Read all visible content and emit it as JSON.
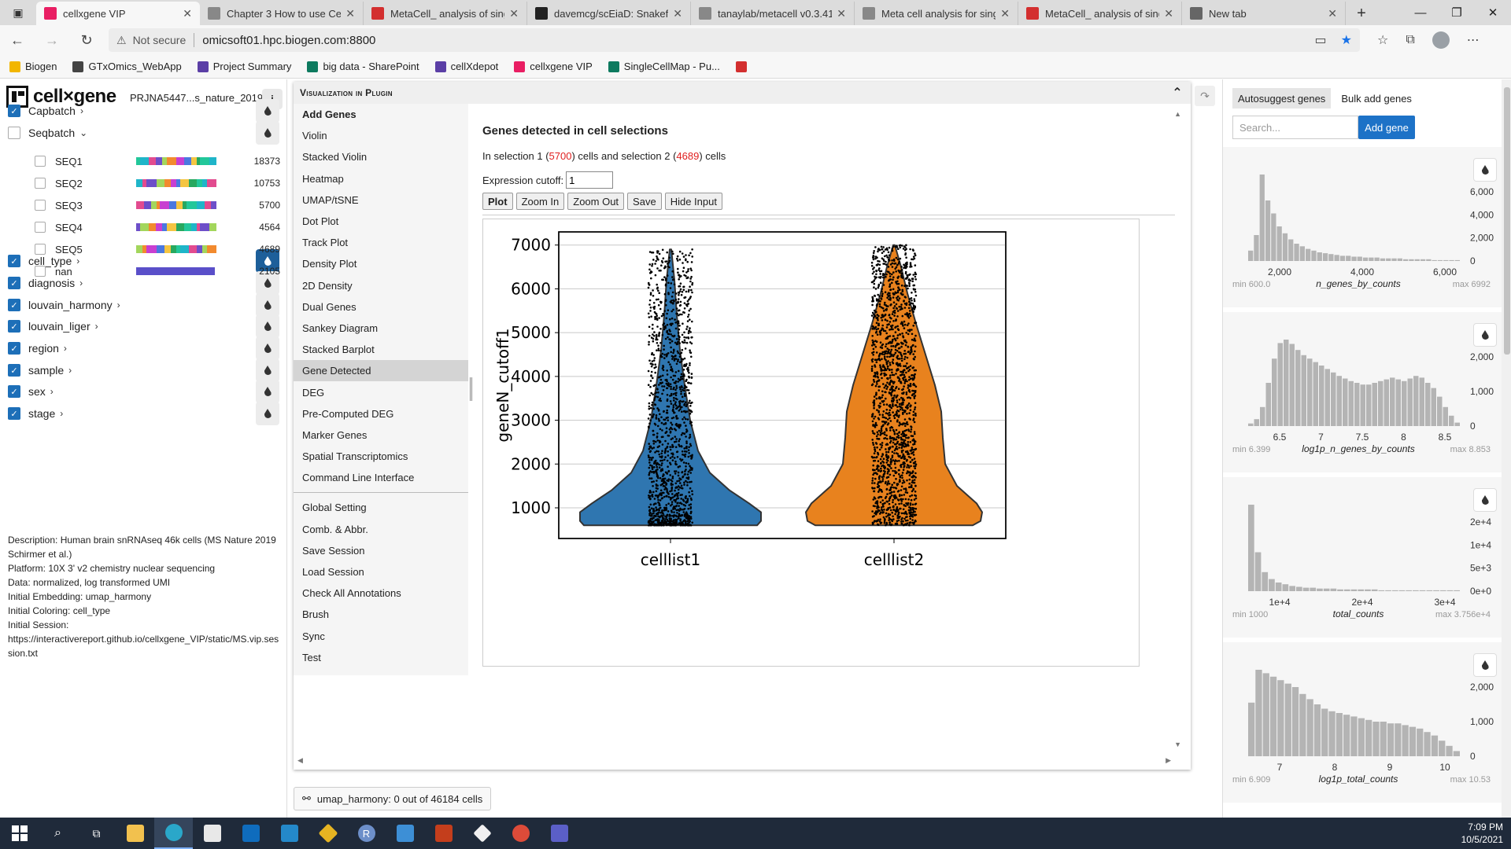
{
  "browser": {
    "tabs": [
      {
        "title": "cellxgene VIP",
        "color": "#e91e63",
        "active": true
      },
      {
        "title": "Chapter 3 How to use Cell",
        "color": "#888888",
        "active": false
      },
      {
        "title": "MetaCell_ analysis of singl",
        "color": "#d32f2f",
        "active": false
      },
      {
        "title": "davemcg/scEiaD: Snakefile",
        "color": "#222222",
        "active": false
      },
      {
        "title": "tanaylab/metacell v0.3.41",
        "color": "#888888",
        "active": false
      },
      {
        "title": "Meta cell analysis for singl",
        "color": "#888888",
        "active": false
      },
      {
        "title": "MetaCell_ analysis of singl",
        "color": "#d32f2f",
        "active": false
      },
      {
        "title": "New tab",
        "color": "#666666",
        "active": false
      }
    ],
    "not_secure": "Not secure",
    "url": "omicsoft01.hpc.biogen.com:8800",
    "bookmarks": [
      {
        "label": "Biogen",
        "color": "#f2b600"
      },
      {
        "label": "GTxOmics_WebApp",
        "color": "#444444"
      },
      {
        "label": "Project Summary",
        "color": "#5b3fa6"
      },
      {
        "label": "big data - SharePoint",
        "color": "#0d7a5f"
      },
      {
        "label": "cellXdepot",
        "color": "#5b3fa6"
      },
      {
        "label": "cellxgene VIP",
        "color": "#e91e63"
      },
      {
        "label": "SingleCellMap - Pu...",
        "color": "#0d7a5f"
      },
      {
        "label": "",
        "color": "#d32f2f"
      }
    ]
  },
  "left": {
    "logo": "cell×gene",
    "dataset": "PRJNA5447...s_nature_2019",
    "info_icon": "info-icon",
    "categories": [
      {
        "label": "Capbatch",
        "checked": true,
        "chevron": "›",
        "active": false
      },
      {
        "label": "Seqbatch",
        "checked": false,
        "chevron": "⌄",
        "active": false
      },
      {
        "label": "cell_type",
        "checked": true,
        "chevron": "›",
        "active": true
      },
      {
        "label": "diagnosis",
        "checked": true,
        "chevron": "›",
        "active": false
      },
      {
        "label": "louvain_harmony",
        "checked": true,
        "chevron": "›",
        "active": false
      },
      {
        "label": "louvain_liger",
        "checked": true,
        "chevron": "›",
        "active": false
      },
      {
        "label": "region",
        "checked": true,
        "chevron": "›",
        "active": false
      },
      {
        "label": "sample",
        "checked": true,
        "chevron": "›",
        "active": false
      },
      {
        "label": "sex",
        "checked": true,
        "chevron": "›",
        "active": false
      },
      {
        "label": "stage",
        "checked": true,
        "chevron": "›",
        "active": false
      }
    ],
    "seqbatch_values": [
      {
        "label": "SEQ1",
        "count": "18373"
      },
      {
        "label": "SEQ2",
        "count": "10753"
      },
      {
        "label": "SEQ3",
        "count": "5700"
      },
      {
        "label": "SEQ4",
        "count": "4564"
      },
      {
        "label": "SEQ5",
        "count": "4689"
      },
      {
        "label": "nan",
        "count": "2105"
      }
    ],
    "description": [
      "Description: Human brain snRNAseq 46k cells (MS Nature 2019 Schirmer et al.)",
      "Platform: 10X 3' v2 chemistry nuclear sequencing",
      "Data: normalized, log transformed UMI",
      "Initial Embedding: umap_harmony",
      "Initial Coloring: cell_type",
      "Initial Session:",
      "https://interactivereport.github.io/cellxgene_VIP/static/MS.vip.session.txt"
    ]
  },
  "plugin": {
    "title": "Visualization in Plugin",
    "menu_top": [
      "Add Genes",
      "Violin",
      "Stacked Violin",
      "Heatmap",
      "UMAP/tSNE",
      "Dot Plot",
      "Track Plot",
      "Density Plot",
      "2D Density",
      "Dual Genes",
      "Sankey Diagram",
      "Stacked Barplot",
      "Gene Detected",
      "DEG",
      "Pre-Computed DEG",
      "Marker Genes",
      "Spatial Transcriptomics",
      "Command Line Interface"
    ],
    "menu_bottom": [
      "Global Setting",
      "Comb. & Abbr.",
      "Save Session",
      "Load Session",
      "Check All Annotations",
      "Brush",
      "Sync",
      "Test"
    ],
    "selected_menu": "Gene Detected",
    "heading": "Genes detected in cell selections",
    "sel_prefix": "In selection 1 (",
    "sel1": "5700",
    "sel_mid": ") cells and selection 2 (",
    "sel2": "4689",
    "sel_suffix": ") cells",
    "cutoff_label": "Expression cutoff:",
    "cutoff_value": "1",
    "buttons": [
      "Plot",
      "Zoom In",
      "Zoom Out",
      "Save",
      "Hide Input"
    ]
  },
  "chart_data": {
    "type": "violin",
    "categories": [
      "celllist1",
      "celllist2"
    ],
    "ylabel": "geneN_cutoff1",
    "yticks": [
      1000,
      2000,
      3000,
      4000,
      5000,
      6000,
      7000
    ],
    "ylim": [
      300,
      7300
    ],
    "colors": [
      "#2f76b0",
      "#e8821e"
    ],
    "series": [
      {
        "name": "celllist1",
        "min": 600,
        "max": 6900,
        "median": 1400
      },
      {
        "name": "celllist2",
        "min": 600,
        "max": 7000,
        "median": 2700
      }
    ],
    "grid": true
  },
  "status": {
    "icon": "embedding-icon",
    "text": "umap_harmony: 0 out of 46184 cells"
  },
  "right": {
    "tabs": [
      "Autosuggest genes",
      "Bulk add genes"
    ],
    "search_placeholder": "Search...",
    "add_gene": "Add gene",
    "histograms": [
      {
        "name": "n_genes_by_counts",
        "min": "min 600.0",
        "max": "max 6992",
        "xticks": [
          "2,000",
          "4,000",
          "6,000"
        ],
        "yticks": [
          "6,000",
          "4,000",
          "2,000",
          "0"
        ]
      },
      {
        "name": "log1p_n_genes_by_counts",
        "min": "min 6.399",
        "max": "max 8.853",
        "xticks": [
          "6.5",
          "7",
          "7.5",
          "8",
          "8.5"
        ],
        "yticks": [
          "2,000",
          "1,000",
          "0"
        ]
      },
      {
        "name": "total_counts",
        "min": "min 1000",
        "max": "max 3.756e+4",
        "xticks": [
          "1e+4",
          "2e+4",
          "3e+4"
        ],
        "yticks": [
          "2e+4",
          "1e+4",
          "5e+3",
          "0e+0"
        ]
      },
      {
        "name": "log1p_total_counts",
        "min": "min 6.909",
        "max": "max 10.53",
        "xticks": [
          "7",
          "8",
          "9",
          "10"
        ],
        "yticks": [
          "2,000",
          "1,000",
          "0"
        ]
      }
    ]
  },
  "taskbar": {
    "time": "7:09 PM",
    "date": "10/5/2021"
  }
}
